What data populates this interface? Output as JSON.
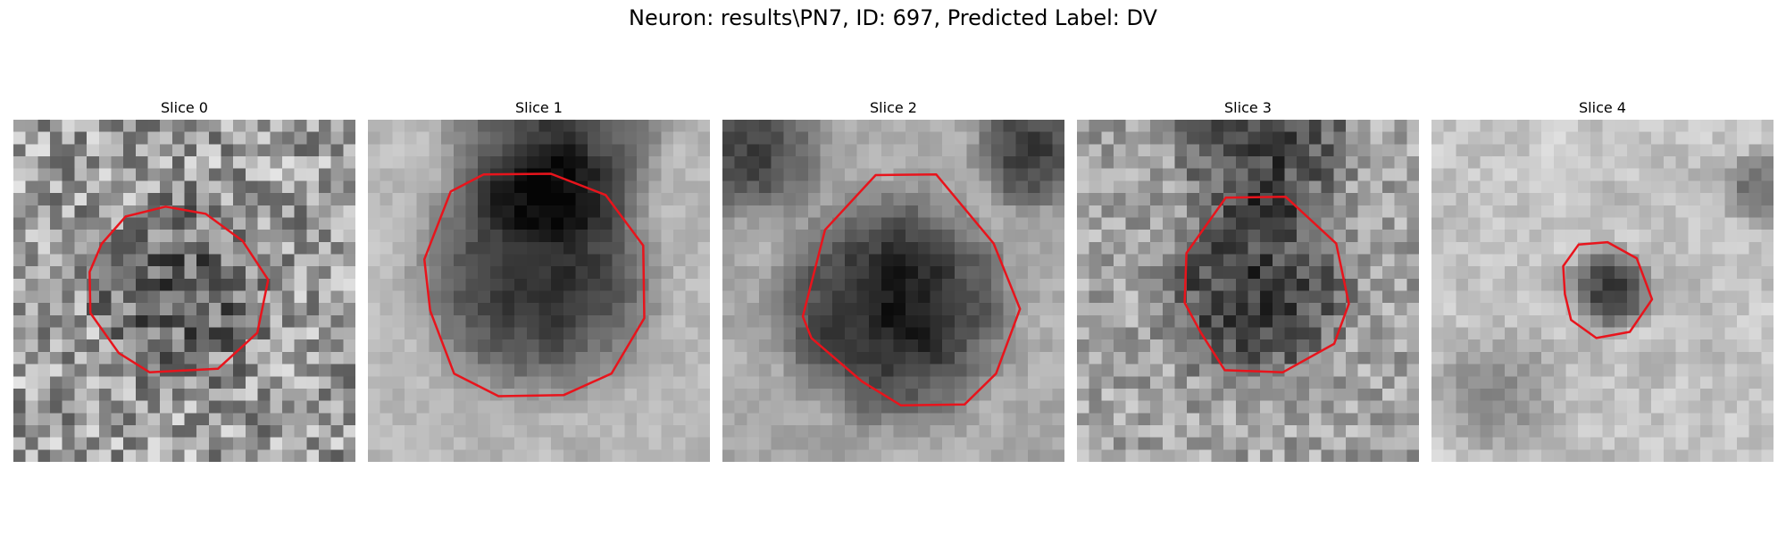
{
  "figure": {
    "title": "Neuron: results\\PN7, ID: 697, Predicted Label: DV"
  },
  "slices": [
    {
      "title": "Slice 0",
      "contour_color": "#e8141c",
      "contour_points": [
        [
          0.223,
          0.445
        ],
        [
          0.258,
          0.363
        ],
        [
          0.328,
          0.283
        ],
        [
          0.445,
          0.254
        ],
        [
          0.562,
          0.275
        ],
        [
          0.67,
          0.354
        ],
        [
          0.745,
          0.468
        ],
        [
          0.713,
          0.623
        ],
        [
          0.598,
          0.728
        ],
        [
          0.398,
          0.738
        ],
        [
          0.308,
          0.682
        ],
        [
          0.225,
          0.565
        ]
      ]
    },
    {
      "title": "Slice 1",
      "contour_color": "#e8141c",
      "contour_points": [
        [
          0.165,
          0.408
        ],
        [
          0.242,
          0.21
        ],
        [
          0.338,
          0.16
        ],
        [
          0.535,
          0.158
        ],
        [
          0.695,
          0.22
        ],
        [
          0.805,
          0.368
        ],
        [
          0.808,
          0.58
        ],
        [
          0.712,
          0.742
        ],
        [
          0.572,
          0.805
        ],
        [
          0.382,
          0.808
        ],
        [
          0.252,
          0.742
        ],
        [
          0.182,
          0.558
        ]
      ]
    },
    {
      "title": "Slice 2",
      "contour_color": "#e8141c",
      "contour_points": [
        [
          0.3,
          0.322
        ],
        [
          0.448,
          0.162
        ],
        [
          0.625,
          0.16
        ],
        [
          0.793,
          0.362
        ],
        [
          0.87,
          0.553
        ],
        [
          0.8,
          0.742
        ],
        [
          0.708,
          0.832
        ],
        [
          0.522,
          0.835
        ],
        [
          0.408,
          0.765
        ],
        [
          0.26,
          0.638
        ],
        [
          0.235,
          0.575
        ]
      ]
    },
    {
      "title": "Slice 3",
      "contour_color": "#e8141c",
      "contour_points": [
        [
          0.32,
          0.39
        ],
        [
          0.435,
          0.228
        ],
        [
          0.61,
          0.225
        ],
        [
          0.758,
          0.362
        ],
        [
          0.795,
          0.538
        ],
        [
          0.752,
          0.655
        ],
        [
          0.602,
          0.738
        ],
        [
          0.432,
          0.732
        ],
        [
          0.362,
          0.622
        ],
        [
          0.315,
          0.535
        ]
      ]
    },
    {
      "title": "Slice 4",
      "contour_color": "#e8141c",
      "contour_points": [
        [
          0.385,
          0.428
        ],
        [
          0.43,
          0.365
        ],
        [
          0.515,
          0.358
        ],
        [
          0.6,
          0.405
        ],
        [
          0.645,
          0.525
        ],
        [
          0.58,
          0.62
        ],
        [
          0.482,
          0.638
        ],
        [
          0.408,
          0.585
        ],
        [
          0.39,
          0.51
        ]
      ]
    }
  ]
}
